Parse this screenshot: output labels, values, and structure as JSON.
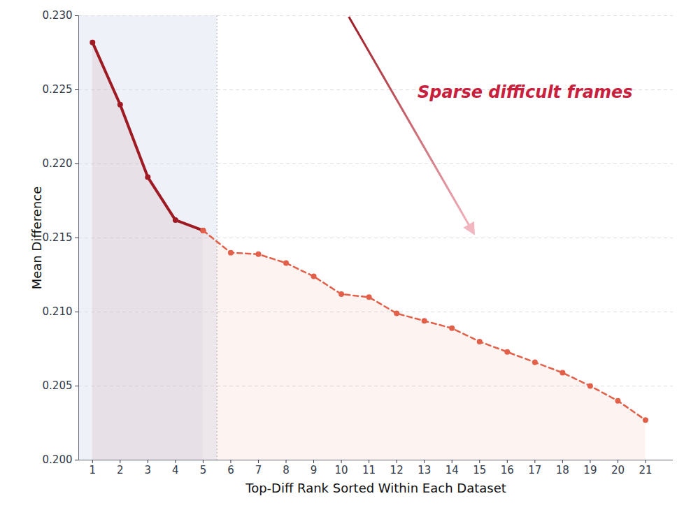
{
  "chart_data": {
    "type": "line",
    "x_label": "Top-Diff Rank Sorted Within Each Dataset",
    "y_label": "Mean Difference",
    "annotation": "Sparse difficult frames",
    "annotation_color": "#c8203c",
    "x": [
      1,
      2,
      3,
      4,
      5,
      6,
      7,
      8,
      9,
      10,
      11,
      12,
      13,
      14,
      15,
      16,
      17,
      18,
      19,
      20,
      21
    ],
    "series": [
      {
        "color": "#9e1b24",
        "line_style": "solid",
        "marker": "circle",
        "values": [
          0.2282,
          0.224,
          0.2191,
          0.2162,
          0.2155,
          null,
          null,
          null,
          null,
          null,
          null,
          null,
          null,
          null,
          null,
          null,
          null,
          null,
          null,
          null,
          null
        ]
      },
      {
        "color": "#e2604a",
        "line_style": "dashed",
        "marker": "circle",
        "values": [
          null,
          null,
          null,
          null,
          0.2155,
          0.214,
          0.2139,
          0.2133,
          0.2124,
          0.2112,
          0.211,
          0.2099,
          0.2094,
          0.2089,
          0.208,
          0.2073,
          0.2066,
          0.2059,
          0.205,
          0.204,
          0.2027
        ]
      }
    ],
    "xlim": [
      0.5,
      22
    ],
    "xticks": [
      1,
      2,
      3,
      4,
      5,
      6,
      7,
      8,
      9,
      10,
      11,
      12,
      13,
      14,
      15,
      16,
      17,
      18,
      19,
      20,
      21
    ],
    "ylim": [
      0.2,
      0.23
    ],
    "yticks": [
      {
        "value": 0.2,
        "label": "0.200"
      },
      {
        "value": 0.205,
        "label": "0.205"
      },
      {
        "value": 0.21,
        "label": "0.210"
      },
      {
        "value": 0.215,
        "label": "0.215"
      },
      {
        "value": 0.22,
        "label": "0.220"
      },
      {
        "value": 0.225,
        "label": "0.225"
      },
      {
        "value": 0.23,
        "label": "0.230"
      }
    ],
    "grid": true
  }
}
